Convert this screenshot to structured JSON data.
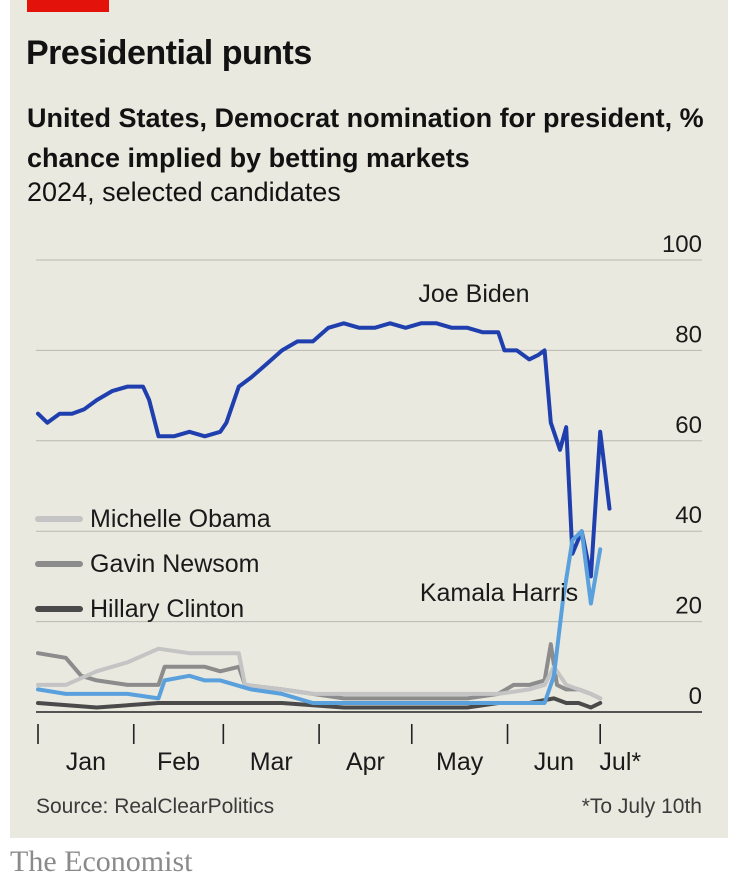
{
  "header": {
    "title": "Presidential punts",
    "subtitle": "United States, Democrat nomination for president, % chance implied by betting markets",
    "note": "2024, selected candidates"
  },
  "footer": {
    "source": "Source: RealClearPolitics",
    "footnote": "*To July 10th"
  },
  "brand": "The Economist",
  "colors": {
    "accent": "#e3120b",
    "background": "#e9e9e0",
    "biden": "#1f3fae",
    "harris": "#5aa0dd",
    "obama": "#c4c4c4",
    "newsom": "#8c8c8c",
    "clinton": "#4a4a4a"
  },
  "chart_data": {
    "type": "line",
    "x_unit": "day of 2024",
    "categories": [
      "Jan",
      "Feb",
      "Mar",
      "Apr",
      "May",
      "Jun",
      "Jul*"
    ],
    "ylim": [
      0,
      100
    ],
    "yticks": [
      "100",
      "80",
      "60",
      "40",
      "20",
      "0"
    ],
    "grid": true,
    "legend_placement": "left-middle",
    "series": [
      {
        "name": "Joe Biden",
        "color": "#1f3fae",
        "points": [
          [
            1,
            66
          ],
          [
            4,
            64
          ],
          [
            8,
            66
          ],
          [
            12,
            66
          ],
          [
            16,
            67
          ],
          [
            20,
            69
          ],
          [
            25,
            71
          ],
          [
            30,
            72
          ],
          [
            35,
            72
          ],
          [
            37,
            69
          ],
          [
            40,
            61
          ],
          [
            45,
            61
          ],
          [
            50,
            62
          ],
          [
            55,
            61
          ],
          [
            60,
            62
          ],
          [
            62,
            64
          ],
          [
            66,
            72
          ],
          [
            70,
            74
          ],
          [
            75,
            77
          ],
          [
            80,
            80
          ],
          [
            85,
            82
          ],
          [
            90,
            82
          ],
          [
            95,
            85
          ],
          [
            100,
            86
          ],
          [
            105,
            85
          ],
          [
            110,
            85
          ],
          [
            115,
            86
          ],
          [
            120,
            85
          ],
          [
            125,
            86
          ],
          [
            130,
            86
          ],
          [
            135,
            85
          ],
          [
            140,
            85
          ],
          [
            145,
            84
          ],
          [
            150,
            84
          ],
          [
            152,
            80
          ],
          [
            156,
            80
          ],
          [
            160,
            78
          ],
          [
            163,
            79
          ],
          [
            165,
            80
          ],
          [
            167,
            64
          ],
          [
            170,
            58
          ],
          [
            172,
            63
          ],
          [
            174,
            35
          ],
          [
            177,
            40
          ],
          [
            180,
            30
          ],
          [
            183,
            62
          ],
          [
            186,
            45
          ]
        ]
      },
      {
        "name": "Kamala Harris",
        "color": "#5aa0dd",
        "points": [
          [
            1,
            5
          ],
          [
            10,
            4
          ],
          [
            20,
            4
          ],
          [
            30,
            4
          ],
          [
            40,
            3
          ],
          [
            42,
            7
          ],
          [
            50,
            8
          ],
          [
            55,
            7
          ],
          [
            60,
            7
          ],
          [
            70,
            5
          ],
          [
            80,
            4
          ],
          [
            90,
            2
          ],
          [
            100,
            2
          ],
          [
            110,
            2
          ],
          [
            120,
            2
          ],
          [
            130,
            2
          ],
          [
            140,
            2
          ],
          [
            150,
            2
          ],
          [
            160,
            2
          ],
          [
            165,
            2
          ],
          [
            168,
            8
          ],
          [
            171,
            25
          ],
          [
            174,
            38
          ],
          [
            177,
            40
          ],
          [
            180,
            24
          ],
          [
            183,
            36
          ]
        ]
      },
      {
        "name": "Michelle Obama",
        "color": "#c4c4c4",
        "points": [
          [
            1,
            6
          ],
          [
            10,
            6
          ],
          [
            20,
            9
          ],
          [
            30,
            11
          ],
          [
            40,
            14
          ],
          [
            50,
            13
          ],
          [
            60,
            13
          ],
          [
            66,
            13
          ],
          [
            68,
            6
          ],
          [
            80,
            5
          ],
          [
            90,
            4
          ],
          [
            100,
            4
          ],
          [
            110,
            4
          ],
          [
            120,
            4
          ],
          [
            130,
            4
          ],
          [
            140,
            4
          ],
          [
            150,
            4
          ],
          [
            160,
            5
          ],
          [
            165,
            6
          ],
          [
            168,
            10
          ],
          [
            172,
            6
          ],
          [
            176,
            5
          ],
          [
            180,
            4
          ],
          [
            183,
            3
          ]
        ]
      },
      {
        "name": "Gavin Newsom",
        "color": "#8c8c8c",
        "points": [
          [
            1,
            13
          ],
          [
            10,
            12
          ],
          [
            15,
            8
          ],
          [
            20,
            7
          ],
          [
            30,
            6
          ],
          [
            40,
            6
          ],
          [
            42,
            10
          ],
          [
            50,
            10
          ],
          [
            55,
            10
          ],
          [
            60,
            9
          ],
          [
            66,
            10
          ],
          [
            68,
            6
          ],
          [
            80,
            5
          ],
          [
            90,
            4
          ],
          [
            100,
            3
          ],
          [
            110,
            3
          ],
          [
            120,
            3
          ],
          [
            130,
            3
          ],
          [
            140,
            3
          ],
          [
            150,
            4
          ],
          [
            155,
            6
          ],
          [
            160,
            6
          ],
          [
            165,
            7
          ],
          [
            167,
            15
          ],
          [
            169,
            6
          ],
          [
            172,
            5
          ],
          [
            176,
            5
          ],
          [
            180,
            4
          ],
          [
            183,
            3
          ]
        ]
      },
      {
        "name": "Hillary Clinton",
        "color": "#4a4a4a",
        "points": [
          [
            1,
            2
          ],
          [
            20,
            1
          ],
          [
            40,
            2
          ],
          [
            60,
            2
          ],
          [
            80,
            2
          ],
          [
            100,
            1
          ],
          [
            120,
            1
          ],
          [
            140,
            1
          ],
          [
            150,
            2
          ],
          [
            160,
            2
          ],
          [
            168,
            3
          ],
          [
            172,
            2
          ],
          [
            176,
            2
          ],
          [
            180,
            1
          ],
          [
            183,
            2
          ]
        ]
      }
    ],
    "annotations": [
      "Joe Biden",
      "Kamala Harris"
    ],
    "legend": [
      "Michelle Obama",
      "Gavin Newsom",
      "Hillary Clinton"
    ]
  }
}
